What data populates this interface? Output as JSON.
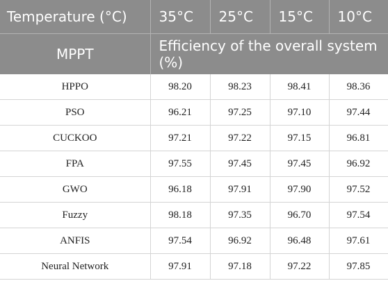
{
  "header": {
    "row1": {
      "label": "Temperature (°C)",
      "temps": [
        "35°C",
        "25°C",
        "15°C",
        "10°C"
      ]
    },
    "row2": {
      "label": "MPPT",
      "span_label": "Efficiency of the overall system (%)"
    }
  },
  "rows": [
    {
      "name": "HPPO",
      "values": [
        "98.20",
        "98.23",
        "98.41",
        "98.36"
      ]
    },
    {
      "name": "PSO",
      "values": [
        "96.21",
        "97.25",
        "97.10",
        "97.44"
      ]
    },
    {
      "name": "CUCKOO",
      "values": [
        "97.21",
        "97.22",
        "97.15",
        "96.81"
      ]
    },
    {
      "name": "FPA",
      "values": [
        "97.55",
        "97.45",
        "97.45",
        "96.92"
      ]
    },
    {
      "name": "GWO",
      "values": [
        "96.18",
        "97.91",
        "97.90",
        "97.52"
      ]
    },
    {
      "name": "Fuzzy",
      "values": [
        "98.18",
        "97.35",
        "96.70",
        "97.54"
      ]
    },
    {
      "name": "ANFIS",
      "values": [
        "97.54",
        "96.92",
        "96.48",
        "97.61"
      ]
    },
    {
      "name": "Neural Network",
      "values": [
        "97.91",
        "97.18",
        "97.22",
        "97.85"
      ]
    }
  ]
}
